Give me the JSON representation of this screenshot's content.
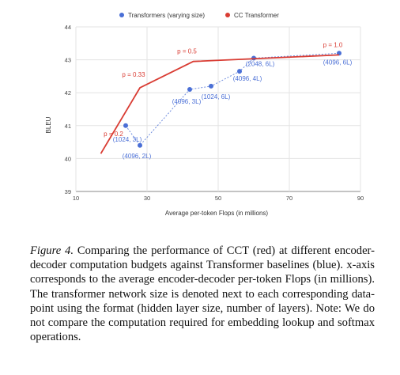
{
  "figure": {
    "caption_label": "Figure 4.",
    "caption_text": "Comparing the performance of CCT (red) at different encoder-decoder computation budgets against Transformer baselines (blue). x-axis corresponds to the average encoder-decoder per-token Flops (in millions). The transformer network size is denoted next to each corresponding data-point using the format (hidden layer size, number of layers). Note: We do not compare the computation required for embedding lookup and softmax operations."
  },
  "chart_data": {
    "type": "scatter",
    "xlabel": "Average per-token Flops (in millions)",
    "ylabel": "BLEU",
    "xlim": [
      10,
      90
    ],
    "ylim": [
      39,
      44
    ],
    "x_ticks": [
      10,
      30,
      50,
      70,
      90
    ],
    "y_ticks": [
      39,
      40,
      41,
      42,
      43,
      44
    ],
    "grid": true,
    "legend_position": "top",
    "series": [
      {
        "name": "Transformers (varying size)",
        "color": "#4a6fd6",
        "style": "dotted-line-with-markers",
        "points": [
          {
            "x": 24,
            "y": 41.0,
            "label": "(1024, 3L)"
          },
          {
            "x": 28,
            "y": 40.4,
            "label": "(4096, 2L)"
          },
          {
            "x": 42,
            "y": 42.1,
            "label": "(4096, 3L)"
          },
          {
            "x": 48,
            "y": 42.2,
            "label": "(1024, 6L)"
          },
          {
            "x": 56,
            "y": 42.65,
            "label": "(4096, 4L)"
          },
          {
            "x": 60,
            "y": 43.05,
            "label": "(2048, 6L)"
          },
          {
            "x": 84,
            "y": 43.2,
            "label": "(4096, 6L)"
          }
        ]
      },
      {
        "name": "CC Transformer",
        "color": "#d93c33",
        "style": "solid-line",
        "points": [
          {
            "x": 17,
            "y": 40.15,
            "label": "p = 0.2"
          },
          {
            "x": 28,
            "y": 42.15,
            "label": "p = 0.33"
          },
          {
            "x": 43,
            "y": 42.95,
            "label": "p = 0.5"
          },
          {
            "x": 84,
            "y": 43.15,
            "label": "p = 1.0"
          }
        ]
      }
    ]
  }
}
